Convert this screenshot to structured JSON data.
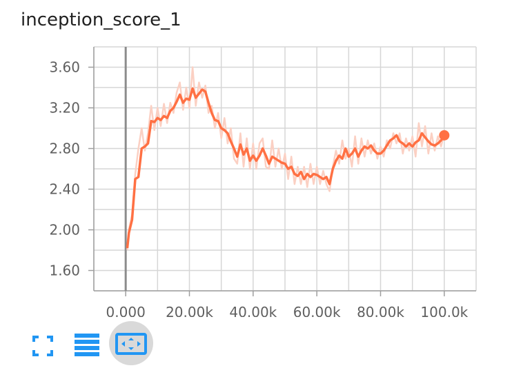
{
  "chart_data": {
    "type": "line",
    "title": "inception_score_1",
    "xlabel": "",
    "ylabel": "",
    "x_ticks": [
      "0.000",
      "20.00k",
      "40.00k",
      "60.00k",
      "80.00k",
      "100.0k"
    ],
    "y_ticks": [
      "1.60",
      "2.00",
      "2.40",
      "2.80",
      "3.20",
      "3.60"
    ],
    "xlim": [
      -10000,
      110000
    ],
    "ylim": [
      1.4,
      3.8
    ],
    "grid": true,
    "series": [
      {
        "color": "#ff7043",
        "raw_color": "#fbd0c3",
        "smoothed": [
          [
            500,
            1.82
          ],
          [
            1000,
            1.97
          ],
          [
            2000,
            2.1
          ],
          [
            3000,
            2.5
          ],
          [
            4000,
            2.52
          ],
          [
            5000,
            2.8
          ],
          [
            6000,
            2.82
          ],
          [
            7000,
            2.85
          ],
          [
            8000,
            3.07
          ],
          [
            9000,
            3.06
          ],
          [
            10000,
            3.1
          ],
          [
            11000,
            3.08
          ],
          [
            12000,
            3.12
          ],
          [
            13000,
            3.1
          ],
          [
            14000,
            3.17
          ],
          [
            15000,
            3.2
          ],
          [
            16000,
            3.26
          ],
          [
            17000,
            3.33
          ],
          [
            18000,
            3.25
          ],
          [
            19000,
            3.29
          ],
          [
            20000,
            3.28
          ],
          [
            21000,
            3.39
          ],
          [
            22000,
            3.3
          ],
          [
            23000,
            3.34
          ],
          [
            24000,
            3.38
          ],
          [
            25000,
            3.36
          ],
          [
            26000,
            3.25
          ],
          [
            27000,
            3.15
          ],
          [
            28000,
            3.08
          ],
          [
            29000,
            3.07
          ],
          [
            30000,
            3.0
          ],
          [
            31000,
            2.98
          ],
          [
            32000,
            2.95
          ],
          [
            33000,
            2.87
          ],
          [
            34000,
            2.8
          ],
          [
            35000,
            2.72
          ],
          [
            36000,
            2.84
          ],
          [
            37000,
            2.74
          ],
          [
            38000,
            2.8
          ],
          [
            39000,
            2.68
          ],
          [
            40000,
            2.73
          ],
          [
            41000,
            2.68
          ],
          [
            42000,
            2.73
          ],
          [
            43000,
            2.8
          ],
          [
            44000,
            2.73
          ],
          [
            45000,
            2.65
          ],
          [
            46000,
            2.72
          ],
          [
            47000,
            2.7
          ],
          [
            48000,
            2.68
          ],
          [
            49000,
            2.66
          ],
          [
            50000,
            2.65
          ],
          [
            51000,
            2.6
          ],
          [
            52000,
            2.62
          ],
          [
            53000,
            2.55
          ],
          [
            54000,
            2.53
          ],
          [
            55000,
            2.57
          ],
          [
            56000,
            2.5
          ],
          [
            57000,
            2.55
          ],
          [
            58000,
            2.52
          ],
          [
            59000,
            2.55
          ],
          [
            60000,
            2.54
          ],
          [
            61000,
            2.52
          ],
          [
            62000,
            2.5
          ],
          [
            63000,
            2.52
          ],
          [
            64000,
            2.45
          ],
          [
            65000,
            2.6
          ],
          [
            66000,
            2.68
          ],
          [
            67000,
            2.73
          ],
          [
            68000,
            2.7
          ],
          [
            69000,
            2.8
          ],
          [
            70000,
            2.72
          ],
          [
            71000,
            2.75
          ],
          [
            72000,
            2.8
          ],
          [
            73000,
            2.72
          ],
          [
            74000,
            2.78
          ],
          [
            75000,
            2.82
          ],
          [
            76000,
            2.8
          ],
          [
            77000,
            2.83
          ],
          [
            78000,
            2.78
          ],
          [
            79000,
            2.75
          ],
          [
            80000,
            2.75
          ],
          [
            81000,
            2.78
          ],
          [
            82000,
            2.83
          ],
          [
            83000,
            2.88
          ],
          [
            84000,
            2.9
          ],
          [
            85000,
            2.93
          ],
          [
            86000,
            2.87
          ],
          [
            87000,
            2.85
          ],
          [
            88000,
            2.82
          ],
          [
            89000,
            2.85
          ],
          [
            90000,
            2.82
          ],
          [
            91000,
            2.86
          ],
          [
            92000,
            2.88
          ],
          [
            93000,
            2.95
          ],
          [
            94000,
            2.91
          ],
          [
            95000,
            2.87
          ],
          [
            96000,
            2.84
          ],
          [
            97000,
            2.83
          ],
          [
            98000,
            2.85
          ],
          [
            99000,
            2.88
          ],
          [
            100000,
            2.93
          ]
        ],
        "raw": [
          [
            500,
            1.8
          ],
          [
            1000,
            2.0
          ],
          [
            2000,
            2.15
          ],
          [
            3000,
            2.55
          ],
          [
            4000,
            2.8
          ],
          [
            5000,
            3.0
          ],
          [
            6000,
            2.78
          ],
          [
            7000,
            2.95
          ],
          [
            8000,
            3.22
          ],
          [
            9000,
            2.98
          ],
          [
            10000,
            3.2
          ],
          [
            11000,
            3.02
          ],
          [
            12000,
            3.24
          ],
          [
            13000,
            3.05
          ],
          [
            14000,
            3.25
          ],
          [
            15000,
            3.15
          ],
          [
            16000,
            3.35
          ],
          [
            17000,
            3.45
          ],
          [
            18000,
            3.18
          ],
          [
            19000,
            3.4
          ],
          [
            20000,
            3.2
          ],
          [
            21000,
            3.6
          ],
          [
            22000,
            3.22
          ],
          [
            23000,
            3.45
          ],
          [
            24000,
            3.3
          ],
          [
            25000,
            3.42
          ],
          [
            26000,
            3.15
          ],
          [
            27000,
            3.22
          ],
          [
            28000,
            3.0
          ],
          [
            29000,
            3.15
          ],
          [
            30000,
            2.9
          ],
          [
            31000,
            3.1
          ],
          [
            32000,
            2.85
          ],
          [
            33000,
            3.0
          ],
          [
            34000,
            2.7
          ],
          [
            35000,
            2.65
          ],
          [
            36000,
            2.95
          ],
          [
            37000,
            2.62
          ],
          [
            38000,
            2.9
          ],
          [
            39000,
            2.6
          ],
          [
            40000,
            2.85
          ],
          [
            41000,
            2.6
          ],
          [
            42000,
            2.85
          ],
          [
            43000,
            2.9
          ],
          [
            44000,
            2.62
          ],
          [
            45000,
            2.6
          ],
          [
            46000,
            2.88
          ],
          [
            47000,
            2.62
          ],
          [
            48000,
            2.8
          ],
          [
            49000,
            2.6
          ],
          [
            50000,
            2.75
          ],
          [
            51000,
            2.5
          ],
          [
            52000,
            2.72
          ],
          [
            53000,
            2.45
          ],
          [
            54000,
            2.62
          ],
          [
            55000,
            2.45
          ],
          [
            56000,
            2.62
          ],
          [
            57000,
            2.42
          ],
          [
            58000,
            2.65
          ],
          [
            59000,
            2.45
          ],
          [
            60000,
            2.62
          ],
          [
            61000,
            2.45
          ],
          [
            62000,
            2.58
          ],
          [
            63000,
            2.45
          ],
          [
            64000,
            2.38
          ],
          [
            65000,
            2.62
          ],
          [
            66000,
            2.78
          ],
          [
            67000,
            2.65
          ],
          [
            68000,
            2.88
          ],
          [
            69000,
            2.7
          ],
          [
            70000,
            2.8
          ],
          [
            71000,
            2.62
          ],
          [
            72000,
            2.92
          ],
          [
            73000,
            2.65
          ],
          [
            74000,
            2.9
          ],
          [
            75000,
            2.72
          ],
          [
            76000,
            2.88
          ],
          [
            77000,
            2.75
          ],
          [
            78000,
            2.85
          ],
          [
            79000,
            2.7
          ],
          [
            80000,
            2.82
          ],
          [
            81000,
            2.72
          ],
          [
            82000,
            2.88
          ],
          [
            83000,
            2.8
          ],
          [
            84000,
            2.95
          ],
          [
            85000,
            2.85
          ],
          [
            86000,
            2.95
          ],
          [
            87000,
            2.75
          ],
          [
            88000,
            2.9
          ],
          [
            89000,
            2.78
          ],
          [
            90000,
            2.92
          ],
          [
            91000,
            2.72
          ],
          [
            92000,
            3.05
          ],
          [
            93000,
            2.82
          ],
          [
            94000,
            3.02
          ],
          [
            95000,
            2.75
          ],
          [
            96000,
            2.95
          ],
          [
            97000,
            2.78
          ],
          [
            98000,
            2.92
          ],
          [
            99000,
            2.82
          ],
          [
            100000,
            2.95
          ]
        ]
      }
    ]
  },
  "toolbar": {
    "fit_icon": "fit-domain-icon",
    "log_icon": "log-scale-icon",
    "expand_icon": "expand-icon",
    "accent": "#2196f3"
  }
}
